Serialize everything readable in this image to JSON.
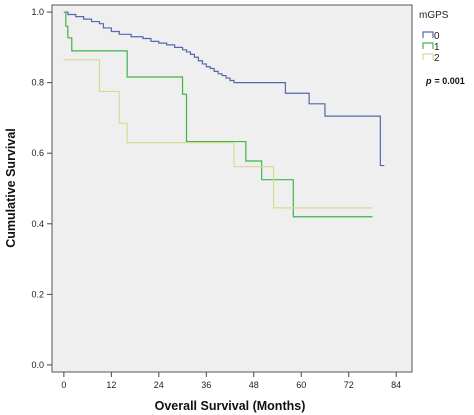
{
  "chart_data": {
    "type": "line",
    "subtype": "kaplan-meier step",
    "xlabel": "Overall Survival (Months)",
    "ylabel": "Cumulative Survival",
    "xlim": [
      -3,
      88
    ],
    "ylim": [
      -0.02,
      1.02
    ],
    "xticks": [
      0,
      12,
      24,
      36,
      48,
      60,
      72,
      84
    ],
    "xtick_labels": [
      "0",
      "12",
      "24",
      "36",
      "48",
      "60",
      "72",
      "84"
    ],
    "yticks": [
      0.0,
      0.2,
      0.4,
      0.6,
      0.8,
      1.0
    ],
    "ytick_labels": [
      "0.0",
      "0.2",
      "0.4",
      "0.6",
      "0.8",
      "1.0"
    ],
    "grid": false,
    "background": "#efefef",
    "legend": {
      "title": "mGPS",
      "position": "right",
      "entries": [
        "0",
        "1",
        "2"
      ]
    },
    "annotation": {
      "label": "p",
      "value": "= 0.001"
    },
    "series": [
      {
        "name": "0",
        "color": "#5468b0",
        "x": [
          0,
          1,
          3,
          5,
          7,
          9,
          10,
          12,
          14,
          17,
          20,
          22,
          24,
          26,
          28,
          30,
          31,
          32,
          33,
          34,
          35,
          36,
          37,
          38,
          39,
          40,
          41,
          42,
          43,
          45,
          48,
          50,
          53,
          56,
          59,
          62,
          66,
          70,
          78,
          80,
          81
        ],
        "y": [
          1.0,
          0.993,
          0.987,
          0.98,
          0.973,
          0.967,
          0.955,
          0.945,
          0.937,
          0.93,
          0.925,
          0.917,
          0.912,
          0.907,
          0.9,
          0.893,
          0.887,
          0.88,
          0.872,
          0.862,
          0.853,
          0.845,
          0.84,
          0.832,
          0.825,
          0.82,
          0.813,
          0.806,
          0.8,
          0.8,
          0.8,
          0.8,
          0.8,
          0.77,
          0.77,
          0.74,
          0.705,
          0.705,
          0.705,
          0.565,
          0.565
        ]
      },
      {
        "name": "1",
        "color": "#3fb548",
        "x": [
          0,
          0.5,
          1,
          2,
          5,
          10,
          16,
          20,
          25,
          29,
          30,
          31,
          44,
          46,
          48,
          50,
          52,
          55,
          56,
          58,
          78
        ],
        "y": [
          1.0,
          0.96,
          0.927,
          0.89,
          0.89,
          0.89,
          0.816,
          0.816,
          0.816,
          0.816,
          0.767,
          0.633,
          0.633,
          0.578,
          0.578,
          0.525,
          0.525,
          0.525,
          0.525,
          0.42,
          0.42
        ]
      },
      {
        "name": "2",
        "color": "#d9da96",
        "x": [
          0,
          1,
          9,
          13,
          14,
          15,
          16,
          21,
          24,
          42,
          43,
          44,
          46,
          50,
          53,
          60,
          78
        ],
        "y": [
          0.865,
          0.865,
          0.775,
          0.775,
          0.685,
          0.685,
          0.63,
          0.63,
          0.63,
          0.63,
          0.562,
          0.562,
          0.562,
          0.562,
          0.445,
          0.445,
          0.445
        ]
      }
    ]
  }
}
